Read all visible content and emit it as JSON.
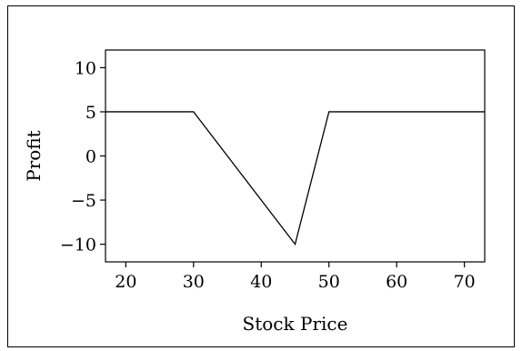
{
  "chart_data": {
    "type": "line",
    "title": "",
    "xlabel": "Stock Price",
    "ylabel": "Profit",
    "xlim": [
      17,
      73
    ],
    "ylim": [
      -12,
      12
    ],
    "xticks": [
      20,
      30,
      40,
      50,
      60,
      70
    ],
    "yticks": [
      -10,
      -5,
      0,
      5,
      10
    ],
    "ytick_labels": [
      "−10",
      "−5",
      "0",
      "5",
      "10"
    ],
    "grid": false,
    "legend": "none",
    "series": [
      {
        "color": "#000000",
        "x": [
          17,
          30,
          45,
          50,
          73
        ],
        "y": [
          5,
          5,
          -10,
          5,
          5
        ]
      }
    ]
  }
}
